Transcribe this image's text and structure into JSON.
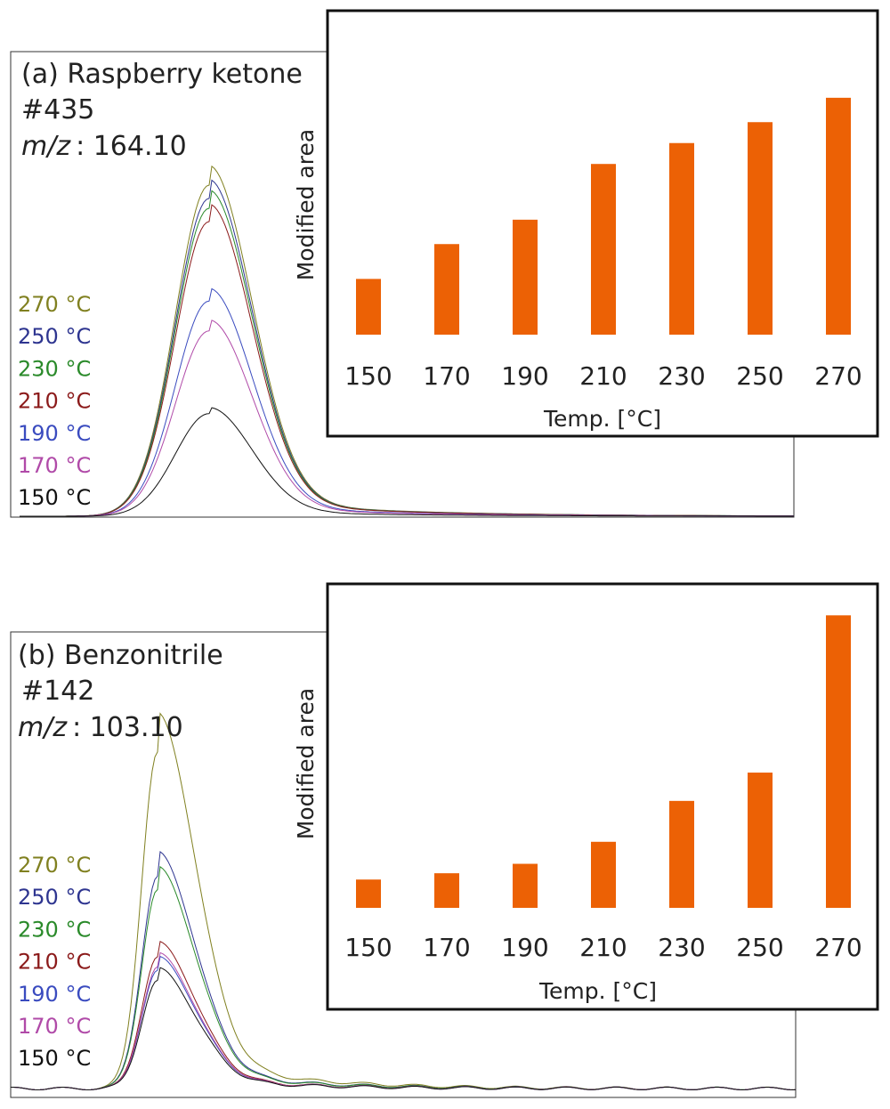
{
  "panels": [
    {
      "id": "a",
      "title": "(a) Raspberry ketone",
      "scan": "#435",
      "mz_label": "m/z",
      "mz_value": ": 164.10",
      "legend": [
        {
          "label": "270 °C",
          "color": "#808020"
        },
        {
          "label": "250 °C",
          "color": "#2e3590"
        },
        {
          "label": "230 °C",
          "color": "#2a8a2a"
        },
        {
          "label": "210 °C",
          "color": "#8b1a1a"
        },
        {
          "label": "190 °C",
          "color": "#3a4bbf"
        },
        {
          "label": "170 °C",
          "color": "#b04aa8"
        },
        {
          "label": "150 °C",
          "color": "#111111"
        }
      ]
    },
    {
      "id": "b",
      "title": "(b) Benzonitrile",
      "scan": "#142",
      "mz_label": "m/z",
      "mz_value": ": 103.10",
      "legend": [
        {
          "label": "270 °C",
          "color": "#808020"
        },
        {
          "label": "250 °C",
          "color": "#2e3590"
        },
        {
          "label": "230 °C",
          "color": "#2a8a2a"
        },
        {
          "label": "210 °C",
          "color": "#8b1a1a"
        },
        {
          "label": "190 °C",
          "color": "#3a4bbf"
        },
        {
          "label": "170 °C",
          "color": "#b04aa8"
        },
        {
          "label": "150 °C",
          "color": "#111111"
        }
      ]
    }
  ],
  "chart_data": [
    {
      "type": "line",
      "panel": "a",
      "title": "(a) Raspberry ketone",
      "series": [
        {
          "name": "270 °C",
          "peak": 1.0
        },
        {
          "name": "250 °C",
          "peak": 0.96
        },
        {
          "name": "230 °C",
          "peak": 0.93
        },
        {
          "name": "210 °C",
          "peak": 0.89
        },
        {
          "name": "190 °C",
          "peak": 0.65
        },
        {
          "name": "170 °C",
          "peak": 0.56
        },
        {
          "name": "150 °C",
          "peak": 0.31
        }
      ]
    },
    {
      "type": "bar",
      "panel": "a",
      "categories": [
        "150",
        "170",
        "190",
        "210",
        "230",
        "250",
        "270"
      ],
      "values": [
        16,
        26,
        33,
        49,
        55,
        61,
        68
      ],
      "xlabel": "Temp. [°C]",
      "ylabel": "Modified area",
      "ylim": [
        0,
        93
      ],
      "bar_color": "#ec6105"
    },
    {
      "type": "line",
      "panel": "b",
      "title": "(b) Benzonitrile",
      "series": [
        {
          "name": "270 °C",
          "peak": 1.0
        },
        {
          "name": "250 °C",
          "peak": 0.63
        },
        {
          "name": "230 °C",
          "peak": 0.59
        },
        {
          "name": "210 °C",
          "peak": 0.39
        },
        {
          "name": "190 °C",
          "peak": 0.35
        },
        {
          "name": "170 °C",
          "peak": 0.36
        },
        {
          "name": "150 °C",
          "peak": 0.32
        }
      ]
    },
    {
      "type": "bar",
      "panel": "b",
      "categories": [
        "150",
        "170",
        "190",
        "210",
        "230",
        "250",
        "270"
      ],
      "values": [
        9,
        11,
        14,
        21,
        34,
        43,
        93
      ],
      "xlabel": "Temp. [°C]",
      "ylabel": "Modified area",
      "ylim": [
        0,
        103
      ],
      "bar_color": "#ec6105"
    }
  ]
}
